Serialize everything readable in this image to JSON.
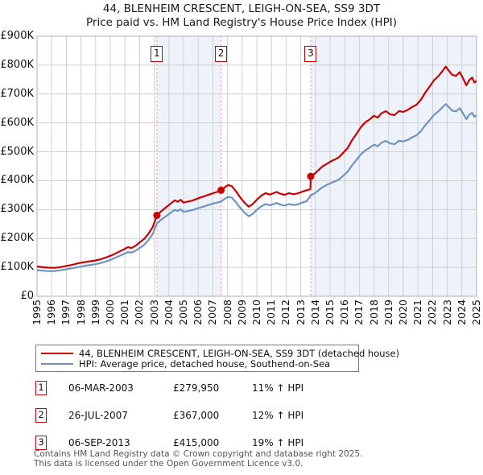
{
  "title": "44, BLENHEIM CRESCENT, LEIGH-ON-SEA, SS9 3DT",
  "subtitle": "Price paid vs. HM Land Registry's House Price Index (HPI)",
  "colors": {
    "property_line": "#cc0000",
    "hpi_line": "#7092c0",
    "grid": "#d0d0d0",
    "plot_border": "#b0b0b0",
    "shade": "#eef2fb",
    "dashed_marker": "#ff8888",
    "marker_box_border": "#cc0000",
    "footer_text": "#555555"
  },
  "chart_data": {
    "type": "line",
    "xlabel": "",
    "ylabel": "",
    "xlim": [
      1995,
      2025
    ],
    "ylim": [
      0,
      900000
    ],
    "grid": true,
    "legend_position": "bottom",
    "x_ticks": [
      1995,
      1996,
      1997,
      1998,
      1999,
      2000,
      2001,
      2002,
      2003,
      2004,
      2005,
      2006,
      2007,
      2008,
      2009,
      2010,
      2011,
      2012,
      2013,
      2014,
      2015,
      2016,
      2017,
      2018,
      2019,
      2020,
      2021,
      2022,
      2023,
      2024,
      2025
    ],
    "y_ticks": [
      {
        "value": 0,
        "label": "£0"
      },
      {
        "value": 100000,
        "label": "£100K"
      },
      {
        "value": 200000,
        "label": "£200K"
      },
      {
        "value": 300000,
        "label": "£300K"
      },
      {
        "value": 400000,
        "label": "£400K"
      },
      {
        "value": 500000,
        "label": "£500K"
      },
      {
        "value": 600000,
        "label": "£600K"
      },
      {
        "value": 700000,
        "label": "£700K"
      },
      {
        "value": 800000,
        "label": "£800K"
      },
      {
        "value": 900000,
        "label": "£900K"
      }
    ],
    "shaded_periods": [
      [
        2003.18,
        2007.56
      ],
      [
        2013.68,
        2025
      ]
    ],
    "purchases": [
      {
        "label": "1",
        "year": 2003.18,
        "price": 279950
      },
      {
        "label": "2",
        "year": 2007.56,
        "price": 367000
      },
      {
        "label": "3",
        "year": 2013.68,
        "price": 415000
      }
    ],
    "series": [
      {
        "name": "44, BLENHEIM CRESCENT, LEIGH-ON-SEA, SS9 3DT (detached house)",
        "color": "#cc0000",
        "points": [
          [
            1995.0,
            103000
          ],
          [
            1995.4,
            100500
          ],
          [
            1995.8,
            99000
          ],
          [
            1996.2,
            98500
          ],
          [
            1996.6,
            101000
          ],
          [
            1997.0,
            105000
          ],
          [
            1997.4,
            109000
          ],
          [
            1997.8,
            114000
          ],
          [
            1998.2,
            118000
          ],
          [
            1998.6,
            121000
          ],
          [
            1999.0,
            124000
          ],
          [
            1999.4,
            129000
          ],
          [
            1999.8,
            136000
          ],
          [
            2000.2,
            144000
          ],
          [
            2000.6,
            154000
          ],
          [
            2001.0,
            164000
          ],
          [
            2001.2,
            170000
          ],
          [
            2001.45,
            167000
          ],
          [
            2001.7,
            174000
          ],
          [
            2002.0,
            186000
          ],
          [
            2002.3,
            198000
          ],
          [
            2002.6,
            216000
          ],
          [
            2002.9,
            240000
          ],
          [
            2003.18,
            279950
          ],
          [
            2003.5,
            295000
          ],
          [
            2003.8,
            308000
          ],
          [
            2004.1,
            320000
          ],
          [
            2004.4,
            332000
          ],
          [
            2004.6,
            327000
          ],
          [
            2004.8,
            334000
          ],
          [
            2005.0,
            324000
          ],
          [
            2005.3,
            328000
          ],
          [
            2005.6,
            331000
          ],
          [
            2006.0,
            339000
          ],
          [
            2006.4,
            346000
          ],
          [
            2006.8,
            353000
          ],
          [
            2007.1,
            358000
          ],
          [
            2007.35,
            362000
          ],
          [
            2007.56,
            367000
          ],
          [
            2007.8,
            377000
          ],
          [
            2008.05,
            385000
          ],
          [
            2008.3,
            381000
          ],
          [
            2008.6,
            362000
          ],
          [
            2008.9,
            340000
          ],
          [
            2009.2,
            322000
          ],
          [
            2009.45,
            310000
          ],
          [
            2009.7,
            318000
          ],
          [
            2010.0,
            334000
          ],
          [
            2010.3,
            348000
          ],
          [
            2010.6,
            357000
          ],
          [
            2010.9,
            352000
          ],
          [
            2011.15,
            357000
          ],
          [
            2011.35,
            361000
          ],
          [
            2011.6,
            355000
          ],
          [
            2011.9,
            351000
          ],
          [
            2012.2,
            357000
          ],
          [
            2012.5,
            353000
          ],
          [
            2012.8,
            356000
          ],
          [
            2013.1,
            362000
          ],
          [
            2013.4,
            367000
          ],
          [
            2013.66,
            371000
          ],
          [
            2013.68,
            415000
          ],
          [
            2013.95,
            424000
          ],
          [
            2014.2,
            436000
          ],
          [
            2014.5,
            450000
          ],
          [
            2014.8,
            459000
          ],
          [
            2015.1,
            468000
          ],
          [
            2015.35,
            474000
          ],
          [
            2015.6,
            481000
          ],
          [
            2015.9,
            497000
          ],
          [
            2016.2,
            513000
          ],
          [
            2016.5,
            540000
          ],
          [
            2016.8,
            562000
          ],
          [
            2017.1,
            585000
          ],
          [
            2017.4,
            602000
          ],
          [
            2017.7,
            612000
          ],
          [
            2018.0,
            625000
          ],
          [
            2018.25,
            618000
          ],
          [
            2018.5,
            633000
          ],
          [
            2018.8,
            641000
          ],
          [
            2019.1,
            630000
          ],
          [
            2019.4,
            627000
          ],
          [
            2019.7,
            641000
          ],
          [
            2020.0,
            638000
          ],
          [
            2020.3,
            645000
          ],
          [
            2020.6,
            655000
          ],
          [
            2020.9,
            663000
          ],
          [
            2021.2,
            680000
          ],
          [
            2021.5,
            705000
          ],
          [
            2021.8,
            726000
          ],
          [
            2022.1,
            748000
          ],
          [
            2022.4,
            762000
          ],
          [
            2022.65,
            778000
          ],
          [
            2022.9,
            795000
          ],
          [
            2023.1,
            781000
          ],
          [
            2023.35,
            766000
          ],
          [
            2023.6,
            763000
          ],
          [
            2023.85,
            776000
          ],
          [
            2024.1,
            752000
          ],
          [
            2024.3,
            730000
          ],
          [
            2024.5,
            748000
          ],
          [
            2024.7,
            757000
          ],
          [
            2024.85,
            740000
          ],
          [
            2025.0,
            745000
          ]
        ]
      },
      {
        "name": "HPI: Average price, detached house, Southend-on-Sea",
        "color": "#7092c0",
        "points": [
          [
            1995.0,
            90000
          ],
          [
            1995.4,
            88500
          ],
          [
            1995.8,
            87000
          ],
          [
            1996.2,
            87500
          ],
          [
            1996.6,
            90000
          ],
          [
            1997.0,
            93500
          ],
          [
            1997.4,
            97000
          ],
          [
            1997.8,
            101000
          ],
          [
            1998.2,
            105000
          ],
          [
            1998.6,
            108000
          ],
          [
            1999.0,
            111000
          ],
          [
            1999.4,
            116000
          ],
          [
            1999.8,
            122000
          ],
          [
            2000.2,
            130000
          ],
          [
            2000.6,
            139000
          ],
          [
            2001.0,
            148000
          ],
          [
            2001.2,
            153000
          ],
          [
            2001.45,
            151000
          ],
          [
            2001.7,
            157000
          ],
          [
            2002.0,
            167000
          ],
          [
            2002.3,
            178000
          ],
          [
            2002.6,
            194000
          ],
          [
            2002.9,
            216000
          ],
          [
            2003.18,
            252000
          ],
          [
            2003.5,
            266000
          ],
          [
            2003.8,
            277000
          ],
          [
            2004.1,
            288000
          ],
          [
            2004.4,
            299000
          ],
          [
            2004.6,
            295000
          ],
          [
            2004.8,
            301000
          ],
          [
            2005.0,
            292000
          ],
          [
            2005.3,
            295000
          ],
          [
            2005.6,
            298000
          ],
          [
            2006.0,
            305000
          ],
          [
            2006.4,
            311000
          ],
          [
            2006.8,
            318000
          ],
          [
            2007.1,
            322000
          ],
          [
            2007.35,
            325000
          ],
          [
            2007.56,
            328000
          ],
          [
            2007.8,
            337000
          ],
          [
            2008.05,
            344000
          ],
          [
            2008.3,
            341000
          ],
          [
            2008.6,
            324000
          ],
          [
            2008.9,
            304000
          ],
          [
            2009.2,
            288000
          ],
          [
            2009.45,
            277000
          ],
          [
            2009.7,
            284000
          ],
          [
            2010.0,
            299000
          ],
          [
            2010.3,
            311000
          ],
          [
            2010.6,
            319000
          ],
          [
            2010.9,
            315000
          ],
          [
            2011.15,
            319000
          ],
          [
            2011.35,
            323000
          ],
          [
            2011.6,
            317000
          ],
          [
            2011.9,
            314000
          ],
          [
            2012.2,
            319000
          ],
          [
            2012.5,
            316000
          ],
          [
            2012.8,
            318000
          ],
          [
            2013.1,
            324000
          ],
          [
            2013.4,
            329000
          ],
          [
            2013.68,
            349000
          ],
          [
            2013.95,
            356000
          ],
          [
            2014.2,
            366000
          ],
          [
            2014.5,
            378000
          ],
          [
            2014.8,
            386000
          ],
          [
            2015.1,
            393000
          ],
          [
            2015.35,
            398000
          ],
          [
            2015.6,
            404000
          ],
          [
            2015.9,
            417000
          ],
          [
            2016.2,
            431000
          ],
          [
            2016.5,
            453000
          ],
          [
            2016.8,
            472000
          ],
          [
            2017.1,
            491000
          ],
          [
            2017.4,
            505000
          ],
          [
            2017.7,
            514000
          ],
          [
            2018.0,
            525000
          ],
          [
            2018.25,
            519000
          ],
          [
            2018.5,
            531000
          ],
          [
            2018.8,
            538000
          ],
          [
            2019.1,
            529000
          ],
          [
            2019.4,
            526000
          ],
          [
            2019.7,
            538000
          ],
          [
            2020.0,
            536000
          ],
          [
            2020.3,
            541000
          ],
          [
            2020.6,
            550000
          ],
          [
            2020.9,
            557000
          ],
          [
            2021.2,
            571000
          ],
          [
            2021.5,
            592000
          ],
          [
            2021.8,
            610000
          ],
          [
            2022.1,
            628000
          ],
          [
            2022.4,
            640000
          ],
          [
            2022.65,
            653000
          ],
          [
            2022.9,
            665000
          ],
          [
            2023.1,
            655000
          ],
          [
            2023.35,
            642000
          ],
          [
            2023.6,
            640000
          ],
          [
            2023.85,
            651000
          ],
          [
            2024.1,
            631000
          ],
          [
            2024.3,
            613000
          ],
          [
            2024.5,
            628000
          ],
          [
            2024.7,
            635000
          ],
          [
            2024.85,
            621000
          ],
          [
            2025.0,
            626000
          ]
        ]
      }
    ]
  },
  "legend": {
    "items": [
      {
        "label": "44, BLENHEIM CRESCENT, LEIGH-ON-SEA, SS9 3DT (detached house)",
        "color": "#cc0000"
      },
      {
        "label": "HPI: Average price, detached house, Southend-on-Sea",
        "color": "#7092c0"
      }
    ]
  },
  "transactions": [
    {
      "n": "1",
      "date": "06-MAR-2003",
      "price": "£279,950",
      "hpi": "11% ↑ HPI"
    },
    {
      "n": "2",
      "date": "26-JUL-2007",
      "price": "£367,000",
      "hpi": "12% ↑ HPI"
    },
    {
      "n": "3",
      "date": "06-SEP-2013",
      "price": "£415,000",
      "hpi": "19% ↑ HPI"
    }
  ],
  "footer": {
    "line1": "Contains HM Land Registry data © Crown copyright and database right 2025.",
    "line2": "This data is licensed under the Open Government Licence v3.0."
  }
}
